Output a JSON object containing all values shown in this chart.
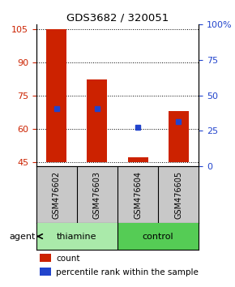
{
  "title": "GDS3682 / 320051",
  "samples": [
    "GSM476602",
    "GSM476603",
    "GSM476604",
    "GSM476605"
  ],
  "groups": [
    "thiamine",
    "thiamine",
    "control",
    "control"
  ],
  "bar_bottom": 45,
  "red_tops": [
    105,
    82,
    47,
    68
  ],
  "blue_values": [
    69,
    69,
    60.5,
    63
  ],
  "ylim_left": [
    43,
    107
  ],
  "ylim_right": [
    0,
    100
  ],
  "yticks_left": [
    45,
    60,
    75,
    90,
    105
  ],
  "yticks_right": [
    0,
    25,
    50,
    75,
    100
  ],
  "pct_labels": [
    "0",
    "25",
    "50",
    "75",
    "100%"
  ],
  "red_color": "#CC2200",
  "blue_color": "#2244CC",
  "bar_width": 0.5,
  "sample_bg": "#C8C8C8",
  "thiamine_color": "#AAEAAA",
  "control_color": "#55CC55",
  "label_count": "count",
  "label_pct": "percentile rank within the sample",
  "agent_text": "agent"
}
